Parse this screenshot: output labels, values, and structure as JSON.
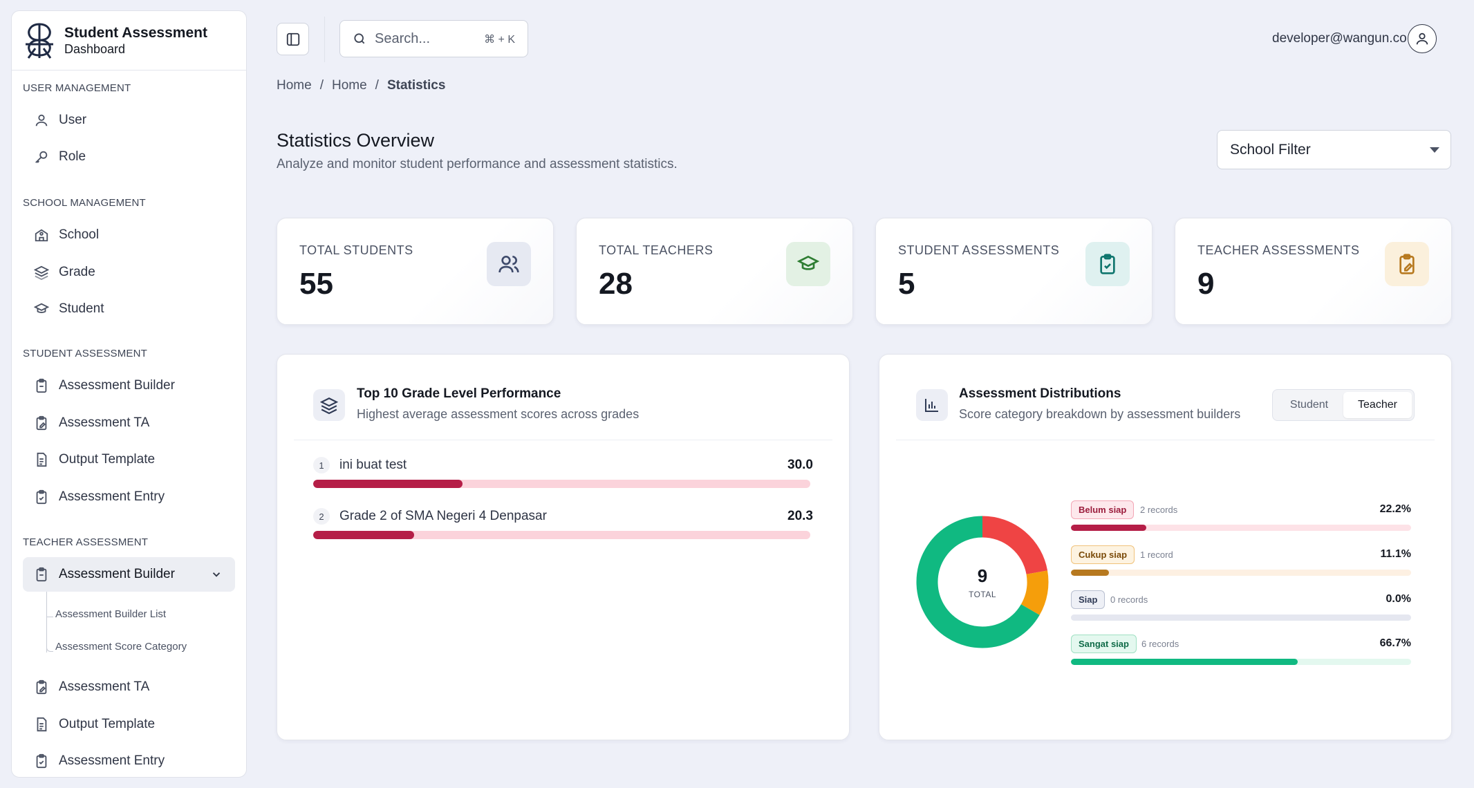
{
  "brand": {
    "title": "Student Assessment",
    "subtitle": "Dashboard"
  },
  "sidebar": {
    "sections": [
      {
        "title": "USER MANAGEMENT",
        "items": [
          "User",
          "Role"
        ]
      },
      {
        "title": "SCHOOL MANAGEMENT",
        "items": [
          "School",
          "Grade",
          "Student"
        ]
      },
      {
        "title": "STUDENT ASSESSMENT",
        "items": [
          "Assessment Builder",
          "Assessment TA",
          "Output Template",
          "Assessment Entry"
        ]
      },
      {
        "title": "TEACHER ASSESSMENT",
        "items": [
          "Assessment Builder",
          "Assessment TA",
          "Output Template",
          "Assessment Entry"
        ]
      }
    ],
    "sub_items": [
      "Assessment Builder List",
      "Assessment Score Category"
    ]
  },
  "topbar": {
    "search_placeholder": "Search...",
    "shortcut": "⌘ + K",
    "user_email": "developer@wangun.co"
  },
  "breadcrumb": [
    "Home",
    "Home",
    "Statistics"
  ],
  "breadcrumb_sep": "/",
  "page": {
    "title": "Statistics Overview",
    "subtitle": "Analyze and monitor student performance and assessment statistics.",
    "filter_label": "School Filter"
  },
  "stats": [
    {
      "label": "TOTAL STUDENTS",
      "value": "55",
      "icon": "users-icon",
      "color": "#3e4a6b"
    },
    {
      "label": "TOTAL TEACHERS",
      "value": "28",
      "icon": "graduation-cap-icon",
      "color": "#2e7d32"
    },
    {
      "label": "STUDENT ASSESSMENTS",
      "value": "5",
      "icon": "clipboard-check-icon",
      "color": "#0f766e"
    },
    {
      "label": "TEACHER ASSESSMENTS",
      "value": "9",
      "icon": "clipboard-edit-icon",
      "color": "#b7791f"
    }
  ],
  "grade_panel": {
    "title": "Top 10 Grade Level Performance",
    "subtitle": "Highest average assessment scores across grades",
    "rows": [
      {
        "rank": "1",
        "name": "ini buat test",
        "score": "30.0",
        "fraction": 0.3
      },
      {
        "rank": "2",
        "name": "Grade 2 of SMA Negeri 4 Denpasar",
        "score": "20.3",
        "fraction": 0.203
      }
    ]
  },
  "dist_panel": {
    "title": "Assessment Distributions",
    "subtitle": "Score category breakdown by assessment builders",
    "tabs": [
      "Student",
      "Teacher"
    ],
    "active_tab": "Teacher",
    "total": "9",
    "total_label": "TOTAL"
  },
  "chart_data": {
    "type": "pie",
    "title": "",
    "categories": [
      "Belum siap",
      "Cukup siap",
      "Siap",
      "Sangat siap"
    ],
    "records": [
      "2 records",
      "1 record",
      "0 records",
      "6 records"
    ],
    "values": [
      2,
      1,
      0,
      6
    ],
    "percentages": [
      "22.2%",
      "11.1%",
      "0.0%",
      "66.7%"
    ],
    "colors": [
      "#ef4444",
      "#f59e0b",
      "#64748b",
      "#10b981"
    ],
    "bar_colors": [
      "#b51e47",
      "#b7791f",
      "#475569",
      "#10b981"
    ],
    "track_colors": [
      "#fde2e7",
      "#fdf0e2",
      "#e5e7f0",
      "#e3f8ef"
    ],
    "pill_styles": [
      {
        "bg": "#fde8ec",
        "border": "#f3a6b5",
        "text": "#9b1c3c"
      },
      {
        "bg": "#fdf3e1",
        "border": "#f0c27a",
        "text": "#7a4a08"
      },
      {
        "bg": "#eef0f6",
        "border": "#b8bfd0",
        "text": "#2f3a55"
      },
      {
        "bg": "#e4f8ef",
        "border": "#9fe0c2",
        "text": "#0f6b48"
      }
    ]
  }
}
